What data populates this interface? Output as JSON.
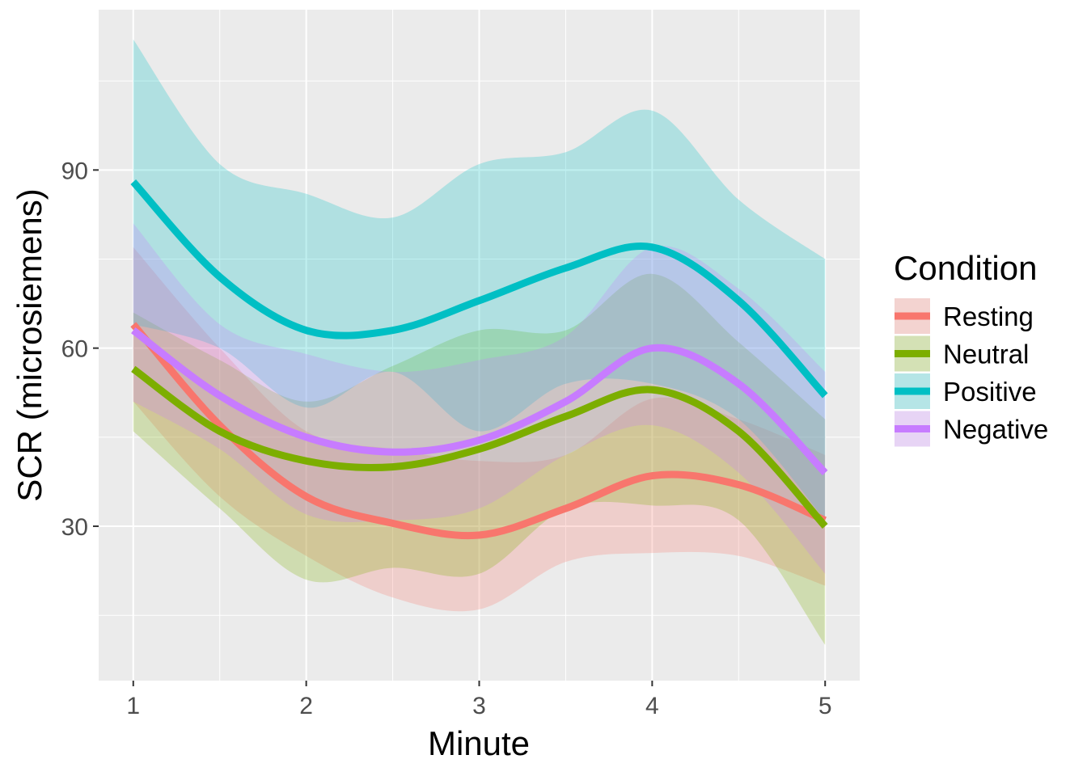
{
  "chart_data": {
    "type": "line",
    "xlabel": "Minute",
    "ylabel": "SCR (microsiemens)",
    "xlim": [
      0.8,
      5.2
    ],
    "ylim": [
      4,
      117
    ],
    "x_ticks": [
      1,
      2,
      3,
      4,
      5
    ],
    "y_ticks": [
      30,
      60,
      90
    ],
    "grid": true,
    "legend": {
      "title": "Condition",
      "position": "right"
    },
    "series": [
      {
        "name": "Resting",
        "color": "#F8766D",
        "x": [
          1,
          1.5,
          2,
          2.5,
          3,
          3.5,
          4,
          4.5,
          5
        ],
        "y": [
          64,
          47,
          35,
          30.5,
          28.5,
          33,
          38.5,
          37,
          31
        ],
        "lower": [
          51,
          35,
          25,
          18,
          16,
          24,
          25.5,
          25,
          20
        ],
        "upper": [
          77,
          60,
          46,
          43,
          41,
          42,
          51.5,
          48,
          42
        ]
      },
      {
        "name": "Neutral",
        "color": "#7CAE00",
        "x": [
          1,
          1.5,
          2,
          2.5,
          3,
          3.5,
          4,
          4.5,
          5
        ],
        "y": [
          56.5,
          46,
          41,
          40,
          43,
          48.5,
          53,
          46,
          30
        ],
        "lower": [
          46,
          33,
          21,
          23,
          22,
          33,
          33.5,
          31,
          10
        ],
        "upper": [
          66,
          58,
          51,
          57,
          63,
          63,
          72.5,
          61,
          48
        ]
      },
      {
        "name": "Positive",
        "color": "#00BFC4",
        "x": [
          1,
          1.5,
          2,
          2.5,
          3,
          3.5,
          4,
          4.5,
          5
        ],
        "y": [
          88,
          72,
          63,
          63,
          68,
          73.5,
          77,
          68,
          52
        ],
        "lower": [
          64,
          60,
          50,
          56,
          46,
          54,
          54,
          48,
          31
        ],
        "upper": [
          112,
          91,
          86,
          82,
          91,
          93,
          100,
          85,
          75
        ]
      },
      {
        "name": "Negative",
        "color": "#C77CFF",
        "x": [
          1,
          1.5,
          2,
          2.5,
          3,
          3.5,
          4,
          4.5,
          5
        ],
        "y": [
          63,
          52,
          45,
          42.5,
          44.5,
          51,
          60,
          54,
          39
        ],
        "lower": [
          51,
          43,
          32,
          31,
          33,
          42,
          47,
          39,
          22
        ],
        "upper": [
          81,
          64,
          59,
          56,
          58,
          62,
          77,
          70,
          56
        ]
      }
    ]
  }
}
